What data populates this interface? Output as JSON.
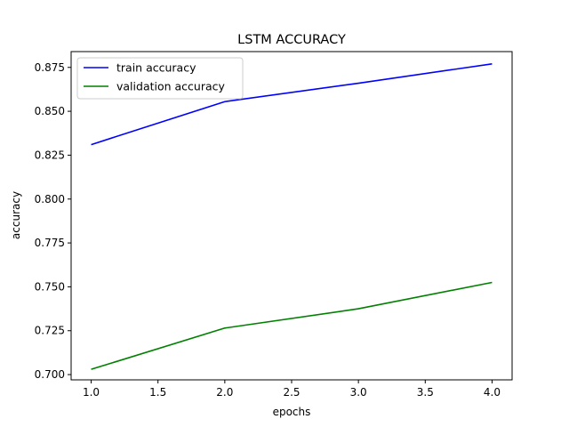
{
  "chart_data": {
    "type": "line",
    "title": "LSTM ACCURACY",
    "xlabel": "epochs",
    "ylabel": "accuracy",
    "xlim": [
      0.85,
      4.15
    ],
    "ylim": [
      0.697,
      0.884
    ],
    "xticks": [
      1.0,
      1.5,
      2.0,
      2.5,
      3.0,
      3.5,
      4.0
    ],
    "xtick_labels": [
      "1.0",
      "1.5",
      "2.0",
      "2.5",
      "3.0",
      "3.5",
      "4.0"
    ],
    "yticks": [
      0.7,
      0.725,
      0.75,
      0.775,
      0.8,
      0.825,
      0.85,
      0.875
    ],
    "ytick_labels": [
      "0.700",
      "0.725",
      "0.750",
      "0.775",
      "0.800",
      "0.825",
      "0.850",
      "0.875"
    ],
    "grid": false,
    "legend_position": "upper-left",
    "x": [
      1,
      2,
      3,
      4
    ],
    "series": [
      {
        "name": "train accuracy",
        "color": "#0000ff",
        "values": [
          0.831,
          0.8555,
          0.866,
          0.877
        ]
      },
      {
        "name": "validation accuracy",
        "color": "#008000",
        "values": [
          0.703,
          0.7265,
          0.7375,
          0.7525
        ]
      }
    ]
  }
}
